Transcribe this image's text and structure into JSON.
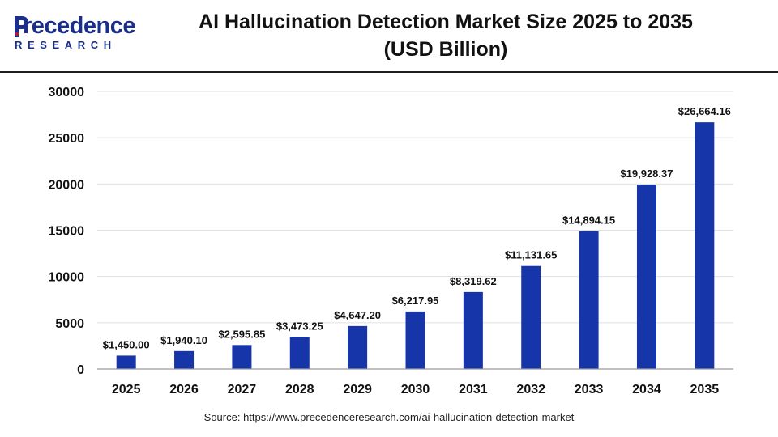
{
  "header": {
    "logo_word": "recedence",
    "logo_sub": "RESEARCH",
    "title_line1": "AI Hallucination Detection Market Size 2025 to 2035",
    "title_line2": "(USD Billion)"
  },
  "source": "Source: https://www.precedenceresearch.com/ai-hallucination-detection-market",
  "colors": {
    "bar": "#1535a8",
    "brand": "#1a2f8a",
    "gridline": "#e0e0e0"
  },
  "chart_data": {
    "type": "bar",
    "title": "AI Hallucination Detection Market Size 2025 to 2035 (USD Billion)",
    "xlabel": "",
    "ylabel": "",
    "categories": [
      "2025",
      "2026",
      "2027",
      "2028",
      "2029",
      "2030",
      "2031",
      "2032",
      "2033",
      "2034",
      "2035"
    ],
    "values": [
      1450.0,
      1940.1,
      2595.85,
      3473.25,
      4647.2,
      6217.95,
      8319.62,
      11131.65,
      14894.15,
      19928.37,
      26664.16
    ],
    "data_labels": [
      "$1,450.00",
      "$1,940.10",
      "$2,595.85",
      "$3,473.25",
      "$4,647.20",
      "$6,217.95",
      "$8,319.62",
      "$11,131.65",
      "$14,894.15",
      "$19,928.37",
      "$26,664.16"
    ],
    "yticks": [
      "0",
      "5000",
      "10000",
      "15000",
      "20000",
      "25000",
      "30000"
    ],
    "ytick_values": [
      0,
      5000,
      10000,
      15000,
      20000,
      25000,
      30000
    ],
    "ylim": [
      0,
      30000
    ],
    "grid": true,
    "legend": "none"
  }
}
